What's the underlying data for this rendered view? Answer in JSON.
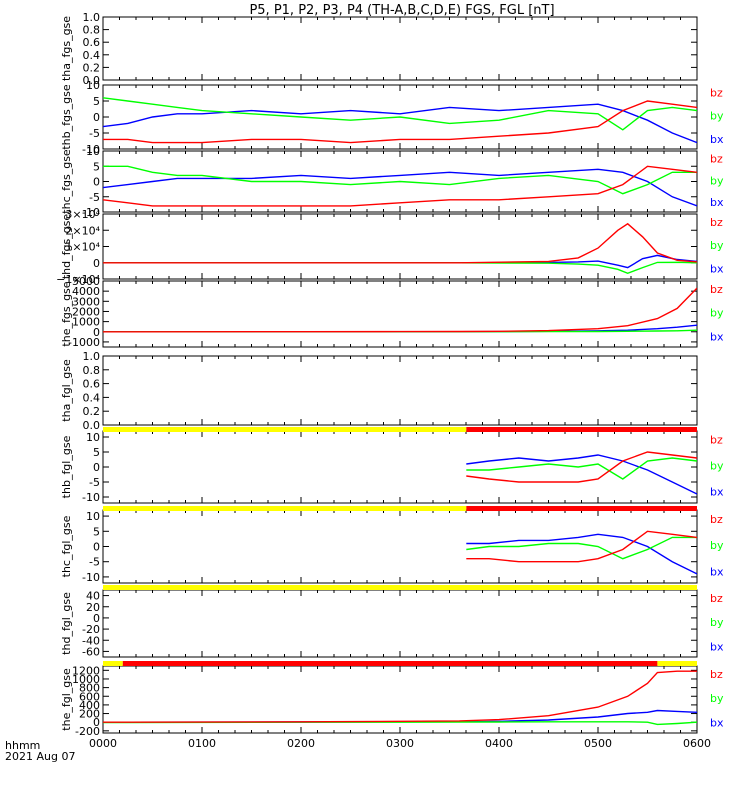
{
  "title": "P5, P1, P2, P3, P4 (TH-A,B,C,D,E) FGS, FGL [nT]",
  "colors": {
    "bx": "#0000ff",
    "by": "#00ff00",
    "bz": "#ff0000",
    "bar_yellow": "#ffff00",
    "bar_red": "#ff0000"
  },
  "x_axis": {
    "ticks": [
      "0000",
      "0100",
      "0200",
      "0300",
      "0400",
      "0500",
      "0600"
    ],
    "label": "hhmm",
    "date": "2021 Aug 07"
  },
  "chart_data": [
    {
      "type": "line",
      "ylabel": "tha_fgs_gse",
      "ylim": [
        0,
        1
      ],
      "yticks": [
        "0.0",
        "0.2",
        "0.4",
        "0.6",
        "0.8",
        "1.0"
      ],
      "series": []
    },
    {
      "type": "line",
      "ylabel": "thb_fgs_gse",
      "ylim": [
        -10,
        10
      ],
      "yticks": [
        "-10",
        "-5",
        "0",
        "5",
        "10"
      ],
      "legend": [
        "bz",
        "by",
        "bx"
      ],
      "x": [
        0,
        0.25,
        0.5,
        0.75,
        1,
        1.5,
        2,
        2.5,
        3,
        3.5,
        4,
        4.5,
        5,
        5.25,
        5.5,
        5.75,
        6
      ],
      "series": [
        {
          "name": "bx",
          "values": [
            -3,
            -2,
            0,
            1,
            1,
            2,
            1,
            2,
            1,
            3,
            2,
            3,
            4,
            2,
            -1,
            -5,
            -8
          ]
        },
        {
          "name": "by",
          "values": [
            6,
            5,
            4,
            3,
            2,
            1,
            0,
            -1,
            0,
            -2,
            -1,
            2,
            1,
            -4,
            2,
            3,
            2
          ]
        },
        {
          "name": "bz",
          "values": [
            -7,
            -7,
            -8,
            -8,
            -8,
            -7,
            -7,
            -8,
            -7,
            -7,
            -6,
            -5,
            -3,
            2,
            5,
            4,
            3
          ]
        }
      ]
    },
    {
      "type": "line",
      "ylabel": "thc_fgs_gse",
      "ylim": [
        -10,
        10
      ],
      "yticks": [
        "-10",
        "-5",
        "0",
        "5",
        "10"
      ],
      "legend": [
        "bz",
        "by",
        "bx"
      ],
      "x": [
        0,
        0.25,
        0.5,
        0.75,
        1,
        1.5,
        2,
        2.5,
        3,
        3.5,
        4,
        4.5,
        5,
        5.25,
        5.5,
        5.75,
        6
      ],
      "series": [
        {
          "name": "bx",
          "values": [
            -2,
            -1,
            0,
            1,
            1,
            1,
            2,
            1,
            2,
            3,
            2,
            3,
            4,
            3,
            0,
            -5,
            -8
          ]
        },
        {
          "name": "by",
          "values": [
            5,
            5,
            3,
            2,
            2,
            0,
            0,
            -1,
            0,
            -1,
            1,
            2,
            0,
            -4,
            -1,
            3,
            3
          ]
        },
        {
          "name": "bz",
          "values": [
            -6,
            -7,
            -8,
            -8,
            -8,
            -8,
            -8,
            -8,
            -7,
            -6,
            -6,
            -5,
            -4,
            -1,
            5,
            4,
            3
          ]
        }
      ]
    },
    {
      "type": "line",
      "ylabel": "thd_fgs_gse",
      "ylim": [
        -10000,
        30000
      ],
      "yticks": [
        "−1×10⁴",
        "0",
        "1×10⁴",
        "2×10⁴",
        "3×10⁴"
      ],
      "legend": [
        "bz",
        "by",
        "bx"
      ],
      "x": [
        0,
        3.6,
        4.5,
        4.8,
        5.0,
        5.2,
        5.3,
        5.45,
        5.6,
        5.8,
        6
      ],
      "series": [
        {
          "name": "bx",
          "values": [
            0,
            0,
            200,
            500,
            1000,
            -1500,
            -3000,
            2500,
            4500,
            2000,
            800
          ]
        },
        {
          "name": "by",
          "values": [
            0,
            0,
            -300,
            -800,
            -1500,
            -4000,
            -6500,
            -3000,
            200,
            300,
            0
          ]
        },
        {
          "name": "bz",
          "values": [
            0,
            0,
            800,
            3000,
            9000,
            20000,
            24000,
            16000,
            6000,
            1500,
            500
          ]
        }
      ]
    },
    {
      "type": "line",
      "ylabel": "the_fgs_gse",
      "ylim": [
        -1500,
        5000
      ],
      "yticks": [
        "-1000",
        "0",
        "1000",
        "2000",
        "3000",
        "4000",
        "5000"
      ],
      "legend": [
        "bz",
        "by",
        "bx"
      ],
      "x": [
        0,
        2,
        3,
        3.6,
        4,
        4.5,
        5,
        5.3,
        5.6,
        5.8,
        6
      ],
      "series": [
        {
          "name": "bx",
          "values": [
            0,
            0,
            5,
            10,
            20,
            50,
            100,
            150,
            300,
            450,
            650
          ]
        },
        {
          "name": "by",
          "values": [
            0,
            5,
            10,
            5,
            10,
            20,
            30,
            50,
            80,
            100,
            150
          ]
        },
        {
          "name": "bz",
          "values": [
            0,
            10,
            20,
            30,
            50,
            120,
            300,
            600,
            1300,
            2300,
            4300
          ]
        }
      ]
    },
    {
      "type": "line",
      "ylabel": "tha_fgl_gse",
      "ylim": [
        0,
        1
      ],
      "yticks": [
        "0.0",
        "0.2",
        "0.4",
        "0.6",
        "0.8",
        "1.0"
      ],
      "series": []
    },
    {
      "type": "line",
      "ylabel": "thb_fgl_gse",
      "ylim": [
        -12,
        12
      ],
      "yticks": [
        "-10",
        "-5",
        "0",
        "5",
        "10"
      ],
      "legend": [
        "bz",
        "by",
        "bx"
      ],
      "data_start": 3.67,
      "x": [
        3.67,
        3.9,
        4.2,
        4.5,
        4.8,
        5.0,
        5.25,
        5.5,
        5.75,
        6
      ],
      "series": [
        {
          "name": "bx",
          "values": [
            1,
            2,
            3,
            2,
            3,
            4,
            2,
            -1,
            -5,
            -9
          ]
        },
        {
          "name": "by",
          "values": [
            -1,
            -1,
            0,
            1,
            0,
            1,
            -4,
            2,
            3,
            2
          ]
        },
        {
          "name": "bz",
          "values": [
            -3,
            -4,
            -5,
            -5,
            -5,
            -4,
            2,
            5,
            4,
            3
          ]
        }
      ]
    },
    {
      "type": "line",
      "ylabel": "thc_fgl_gse",
      "ylim": [
        -12,
        12
      ],
      "yticks": [
        "-10",
        "-5",
        "0",
        "5",
        "10"
      ],
      "legend": [
        "bz",
        "by",
        "bx"
      ],
      "data_start": 3.67,
      "x": [
        3.67,
        3.9,
        4.2,
        4.5,
        4.8,
        5.0,
        5.25,
        5.5,
        5.75,
        6
      ],
      "series": [
        {
          "name": "bx",
          "values": [
            1,
            1,
            2,
            2,
            3,
            4,
            3,
            0,
            -5,
            -9
          ]
        },
        {
          "name": "by",
          "values": [
            -1,
            0,
            0,
            1,
            1,
            0,
            -4,
            -1,
            3,
            3
          ]
        },
        {
          "name": "bz",
          "values": [
            -4,
            -4,
            -5,
            -5,
            -5,
            -4,
            -1,
            5,
            4,
            3
          ]
        }
      ]
    },
    {
      "type": "line",
      "ylabel": "thd_fgl_gse",
      "ylim": [
        -70,
        50
      ],
      "yticks": [
        "-60",
        "-40",
        "-20",
        "0",
        "20",
        "40"
      ],
      "legend": [
        "bz",
        "by",
        "bx"
      ],
      "series": []
    },
    {
      "type": "line",
      "ylabel": "the_fgl_gse",
      "ylim": [
        -250,
        1300
      ],
      "yticks": [
        "-200",
        "0",
        "200",
        "400",
        "600",
        "800",
        "1000",
        "1200"
      ],
      "legend": [
        "bz",
        "by",
        "bx"
      ],
      "x": [
        0,
        2,
        3,
        3.6,
        4,
        4.5,
        5,
        5.3,
        5.5,
        5.6,
        5.8,
        6
      ],
      "series": [
        {
          "name": "bx",
          "values": [
            0,
            5,
            10,
            10,
            20,
            50,
            120,
            200,
            230,
            270,
            250,
            230
          ]
        },
        {
          "name": "by",
          "values": [
            -10,
            0,
            0,
            5,
            5,
            10,
            10,
            10,
            0,
            -50,
            -30,
            0
          ]
        },
        {
          "name": "bz",
          "values": [
            0,
            10,
            20,
            30,
            60,
            150,
            350,
            600,
            900,
            1150,
            1180,
            1180
          ]
        }
      ]
    }
  ],
  "status_bars": [
    {
      "after_panel": "tha_fgl_gse",
      "segments": [
        {
          "from": 0,
          "to": 3.67,
          "color": "yellow"
        },
        {
          "from": 3.67,
          "to": 6,
          "color": "red"
        }
      ]
    },
    {
      "after_panel": "thb_fgl_gse",
      "segments": [
        {
          "from": 0,
          "to": 3.67,
          "color": "yellow"
        },
        {
          "from": 3.67,
          "to": 6,
          "color": "red"
        }
      ]
    },
    {
      "after_panel": "thc_fgl_gse",
      "segments": [
        {
          "from": 0,
          "to": 6,
          "color": "yellow"
        }
      ]
    },
    {
      "after_panel": "thd_fgl_gse",
      "segments": [
        {
          "from": 0,
          "to": 0.2,
          "color": "yellow"
        },
        {
          "from": 0.2,
          "to": 5.6,
          "color": "red"
        },
        {
          "from": 5.6,
          "to": 6,
          "color": "yellow"
        }
      ]
    }
  ]
}
